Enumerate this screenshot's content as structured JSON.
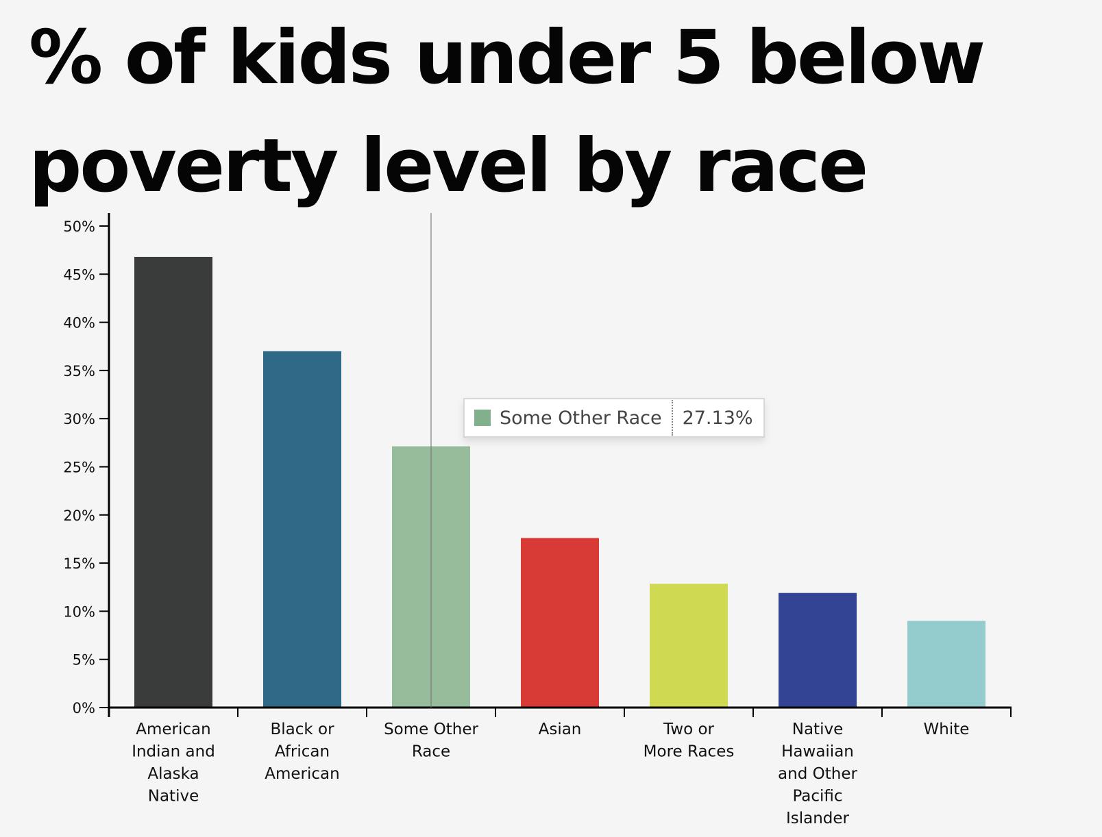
{
  "chart_data": {
    "type": "bar",
    "title": "% of kids under 5 below poverty level by race",
    "categories": [
      "American Indian and Alaska Native",
      "Black or African American",
      "Some Other Race",
      "Asian",
      "Two or More Races",
      "Native Hawaiian and Other Pacific Islander",
      "White"
    ],
    "category_label_lines": [
      [
        "American",
        "Indian and",
        "Alaska",
        "Native"
      ],
      [
        "Black or",
        "African",
        "American"
      ],
      [
        "Some Other",
        "Race"
      ],
      [
        "Asian"
      ],
      [
        "Two or",
        "More Races"
      ],
      [
        "Native",
        "Hawaiian",
        "and Other",
        "Pacific",
        "Islander"
      ],
      [
        "White"
      ]
    ],
    "values": [
      46.8,
      37.0,
      27.13,
      17.6,
      12.85,
      11.9,
      9.0
    ],
    "colors": [
      "#3a3c3b",
      "#2e6987",
      "#96bc9c",
      "#d83a36",
      "#cfd952",
      "#334495",
      "#94cccd"
    ],
    "ylim": [
      0,
      50
    ],
    "yticks": [
      0,
      5,
      10,
      15,
      20,
      25,
      30,
      35,
      40,
      45,
      50
    ],
    "ytick_labels": [
      "0%",
      "5%",
      "10%",
      "15%",
      "20%",
      "25%",
      "30%",
      "35%",
      "40%",
      "45%",
      "50%"
    ],
    "xlabel": "",
    "ylabel": "",
    "grid": false,
    "legend": "none"
  },
  "tooltip": {
    "category": "Some Other Race",
    "value_text": "27.13%",
    "swatch_color": "#83b08c"
  }
}
